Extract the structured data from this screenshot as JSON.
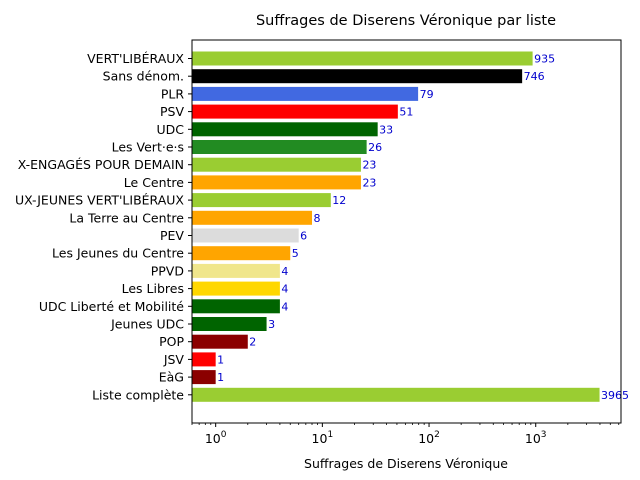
{
  "chart_data": {
    "type": "bar",
    "orientation": "horizontal",
    "title": "Suffrages de Diserens Véronique par liste",
    "xlabel": "Suffrages de Diserens Véronique",
    "ylabel": "",
    "xscale": "log",
    "xlim": [
      0.6,
      6300
    ],
    "grid": false,
    "x_ticks": [
      {
        "value": 1,
        "base": "10",
        "exp": "0"
      },
      {
        "value": 10,
        "base": "10",
        "exp": "1"
      },
      {
        "value": 100,
        "base": "10",
        "exp": "2"
      },
      {
        "value": 1000,
        "base": "10",
        "exp": "3"
      }
    ],
    "bars": [
      {
        "label": "VERT'LIBÉRAUX",
        "value": 935,
        "display": "935",
        "color": "#9acd32"
      },
      {
        "label": "Sans dénom.",
        "value": 746,
        "display": "746",
        "color": "#000000"
      },
      {
        "label": "PLR",
        "value": 79,
        "display": "79",
        "color": "#4169e1"
      },
      {
        "label": "PSV",
        "value": 51,
        "display": "51",
        "color": "#ff0000"
      },
      {
        "label": "UDC",
        "value": 33,
        "display": "33",
        "color": "#006400"
      },
      {
        "label": "Les Vert·e·s",
        "value": 26,
        "display": "26",
        "color": "#228b22"
      },
      {
        "label": "X-ENGAGÉS POUR DEMAIN",
        "value": 23,
        "display": "23",
        "color": "#9acd32"
      },
      {
        "label": "Le Centre",
        "value": 23,
        "display": "23",
        "color": "#ffa500"
      },
      {
        "label": "UX-JEUNES VERT'LIBÉRAUX",
        "value": 12,
        "display": "12",
        "color": "#9acd32"
      },
      {
        "label": "La Terre au Centre",
        "value": 8,
        "display": "8",
        "color": "#ffa500"
      },
      {
        "label": "PEV",
        "value": 6,
        "display": "6",
        "color": "#dcdcdc"
      },
      {
        "label": "Les Jeunes du Centre",
        "value": 5,
        "display": "5",
        "color": "#ffa500"
      },
      {
        "label": "PPVD",
        "value": 4,
        "display": "4",
        "color": "#f0e68c"
      },
      {
        "label": "Les Libres",
        "value": 4,
        "display": "4",
        "color": "#ffd700"
      },
      {
        "label": "UDC Liberté et Mobilité",
        "value": 4,
        "display": "4",
        "color": "#006400"
      },
      {
        "label": "Jeunes UDC",
        "value": 3,
        "display": "3",
        "color": "#006400"
      },
      {
        "label": "POP",
        "value": 2,
        "display": "2",
        "color": "#8b0000"
      },
      {
        "label": "JSV",
        "value": 1,
        "display": "1",
        "color": "#ff0000"
      },
      {
        "label": "EàG",
        "value": 1,
        "display": "1",
        "color": "#8b0000"
      },
      {
        "label": "Liste complète",
        "value": 3965,
        "display": "3965",
        "color": "#9acd32"
      }
    ],
    "value_label_color": "#0000cd"
  }
}
